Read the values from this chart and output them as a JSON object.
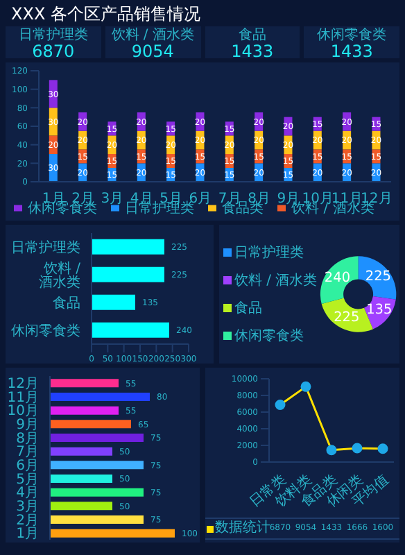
{
  "chart_data": [
    {
      "type": "other",
      "title": "XXX 各个区产品销售情况",
      "categories": [
        "日常护理类",
        "饮料 / 酒水类",
        "食品",
        "休闲零食类"
      ],
      "values": [
        6870,
        9054,
        1433,
        1433
      ],
      "data_labels": true
    },
    {
      "type": "bar",
      "stacked": true,
      "categories": [
        "1月",
        "2月",
        "3月",
        "4月",
        "5月",
        "6月",
        "7月",
        "8月",
        "9月",
        "10月",
        "11月",
        "12月"
      ],
      "series": [
        {
          "name": "日常护理类",
          "color": "#1e90ff",
          "values": [
            30,
            20,
            15,
            20,
            15,
            20,
            15,
            20,
            15,
            20,
            20,
            20
          ]
        },
        {
          "name": "饮料 / 酒水类",
          "color": "#f05a28",
          "values": [
            20,
            15,
            15,
            15,
            15,
            15,
            15,
            15,
            15,
            15,
            15,
            15
          ]
        },
        {
          "name": "食品类",
          "color": "#ffc21a",
          "values": [
            30,
            20,
            20,
            20,
            20,
            20,
            20,
            20,
            20,
            20,
            20,
            20
          ]
        },
        {
          "name": "休闲零食类",
          "color": "#8a2be2",
          "values": [
            30,
            20,
            15,
            20,
            15,
            20,
            15,
            20,
            20,
            15,
            20,
            15
          ]
        }
      ],
      "ylim": [
        0,
        120
      ],
      "yticks": [
        0,
        20,
        40,
        60,
        80,
        100,
        120
      ],
      "data_labels": true,
      "legend": "bottom"
    },
    {
      "type": "bar",
      "orientation": "horizontal",
      "categories": [
        "日常护理类",
        "饮料 / 酒水类",
        "食品",
        "休闲零食类"
      ],
      "values": [
        225,
        225,
        135,
        240
      ],
      "color": "#00ffff",
      "xlim": [
        0,
        300
      ],
      "xticks": [
        0,
        50,
        100,
        150,
        200,
        250,
        300
      ],
      "data_labels": true
    },
    {
      "type": "donut",
      "categories": [
        "日常护理类",
        "饮料 / 酒水类",
        "食品",
        "休闲零食类"
      ],
      "values": [
        225,
        135,
        225,
        240
      ],
      "colors": [
        "#1e90ff",
        "#a040ff",
        "#b8f020",
        "#30f0a0"
      ],
      "data_labels": true,
      "legend": "left"
    },
    {
      "type": "bar",
      "orientation": "horizontal",
      "categories": [
        "12月",
        "11月",
        "10月",
        "9月",
        "8月",
        "7月",
        "6月",
        "5月",
        "4月",
        "3月",
        "2月",
        "1月"
      ],
      "values": [
        55,
        80,
        55,
        65,
        75,
        50,
        75,
        50,
        75,
        50,
        75,
        100
      ],
      "colors": [
        "#ff2d8f",
        "#2040ff",
        "#e020f0",
        "#ff6020",
        "#7020e0",
        "#8040ff",
        "#40b0ff",
        "#20f0e0",
        "#20f080",
        "#a0f010",
        "#ffe040",
        "#ffa010"
      ],
      "data_labels": true,
      "tick_labels": "y"
    },
    {
      "type": "line",
      "categories": [
        "日常类",
        "饮料类",
        "食品类",
        "休闲类",
        "平均值"
      ],
      "series": [
        {
          "name": "数据统计",
          "color": "#ffe000",
          "values": [
            6870,
            9054,
            1433,
            1666,
            1600
          ]
        }
      ],
      "ylim": [
        0,
        10000
      ],
      "yticks": [
        0,
        2000,
        4000,
        6000,
        8000,
        10000
      ],
      "marker": "circle",
      "data_labels": true
    }
  ]
}
